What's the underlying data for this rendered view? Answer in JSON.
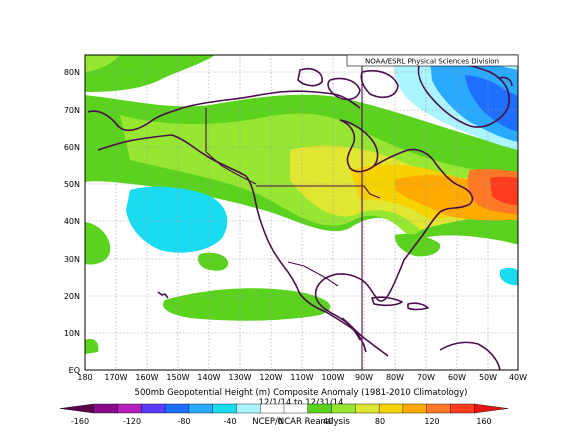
{
  "map": {
    "credit": "NOAA/ESRL Physical Sciences Division",
    "title": "500mb Geopotential Height (m) Composite Anomaly (1981-2010 Climatology)",
    "date_range": "12/1/14 to 12/31/14",
    "source": "NCEP/NCAR Reanalysis",
    "variable": "500mb geopotential height anomaly",
    "units": "m",
    "region": "North America and North Pacific",
    "lat_range": [
      0,
      85
    ],
    "lon_range": [
      -180,
      -40
    ],
    "lat_labels": [
      "EQ",
      "10N",
      "20N",
      "30N",
      "40N",
      "50N",
      "60N",
      "70N",
      "80N"
    ],
    "lon_labels": [
      "180",
      "170W",
      "160W",
      "150W",
      "140W",
      "130W",
      "120W",
      "110W",
      "100W",
      "90W",
      "80W",
      "70W",
      "60W",
      "50W",
      "40W"
    ],
    "gridlines": true,
    "features": [
      "Positive anomaly over Hudson Bay and northeastern North America",
      "Strongest positive anomaly near Newfoundland / western North Atlantic",
      "Negative anomaly over the North Pacific",
      "Negative anomaly over Greenland / high Arctic",
      "Weak negative anomaly near Bermuda region"
    ]
  },
  "colorbar": {
    "tick_labels": [
      "-160",
      "-120",
      "-80",
      "-40",
      "0",
      "40",
      "80",
      "120",
      "160"
    ],
    "colors": [
      "#5a004f",
      "#8b0a8b",
      "#b41ebc",
      "#5a3cff",
      "#1e6eff",
      "#2aaaff",
      "#19dcf0",
      "#aaf5ff",
      "#ffffff",
      "#ffffff",
      "#5ad21e",
      "#96e632",
      "#e1e632",
      "#f5d200",
      "#ffaa00",
      "#ff7828",
      "#ff3c1e",
      "#e61414"
    ]
  }
}
